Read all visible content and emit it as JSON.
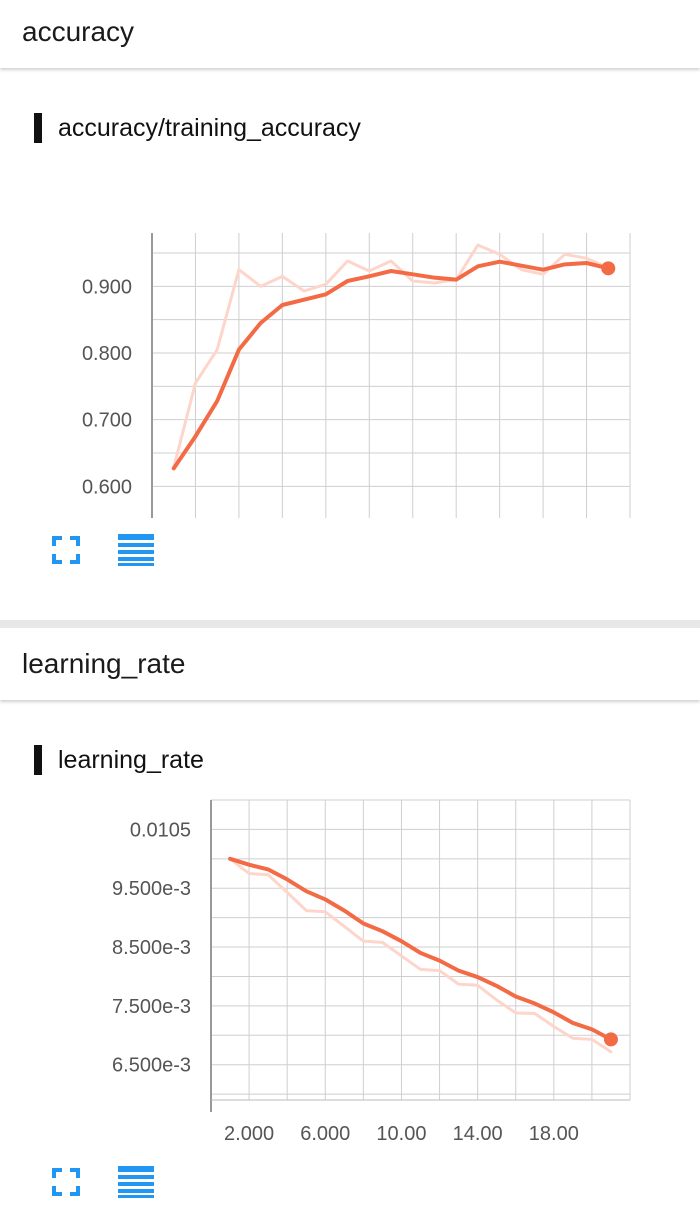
{
  "sections": [
    {
      "header": "accuracy",
      "card_title": "accuracy/training_accuracy",
      "x_ticks": [
        "2.000",
        "6.000",
        "10.00",
        "14.00",
        "18.00"
      ],
      "y_ticks": [
        "0.600",
        "0.700",
        "0.800",
        "0.900"
      ]
    },
    {
      "header": "learning_rate",
      "card_title": "learning_rate",
      "x_ticks": [
        "2.000",
        "6.000",
        "10.00",
        "14.00",
        "18.00"
      ],
      "y_ticks": [
        "0.0105",
        "9.500e-3",
        "8.500e-3",
        "7.500e-3",
        "6.500e-3"
      ]
    }
  ],
  "icons": {
    "expand": "fullscreen-icon",
    "data_table": "list-icon"
  },
  "colors": {
    "smoothed_line": "#f36b45",
    "raw_line": "#fdd5cb",
    "icon_blue": "#2196f3",
    "grid": "#cfcfcf"
  },
  "chart_data": [
    {
      "type": "line",
      "title": "accuracy/training_accuracy",
      "xlabel": "",
      "ylabel": "",
      "xlim": [
        0,
        22
      ],
      "ylim": [
        0.53,
        0.98
      ],
      "x_ticks": [
        2,
        6,
        10,
        14,
        18
      ],
      "y_ticks": [
        0.6,
        0.7,
        0.8,
        0.9
      ],
      "grid": true,
      "series": [
        {
          "role": "raw",
          "x": [
            1,
            2,
            3,
            4,
            5,
            6,
            7,
            8,
            9,
            10,
            11,
            12,
            13,
            14,
            15,
            16,
            17,
            18,
            19,
            20,
            21
          ],
          "y": [
            0.628,
            0.755,
            0.805,
            0.925,
            0.9,
            0.915,
            0.893,
            0.903,
            0.938,
            0.923,
            0.938,
            0.908,
            0.905,
            0.91,
            0.962,
            0.948,
            0.925,
            0.918,
            0.948,
            0.942,
            0.928
          ]
        },
        {
          "role": "smoothed",
          "x": [
            1,
            2,
            3,
            4,
            5,
            6,
            7,
            8,
            9,
            10,
            11,
            12,
            13,
            14,
            15,
            16,
            17,
            18,
            19,
            20,
            21
          ],
          "y": [
            0.627,
            0.675,
            0.728,
            0.805,
            0.845,
            0.872,
            0.88,
            0.888,
            0.908,
            0.915,
            0.923,
            0.918,
            0.913,
            0.91,
            0.93,
            0.937,
            0.931,
            0.925,
            0.933,
            0.935,
            0.927
          ]
        }
      ]
    },
    {
      "type": "line",
      "title": "learning_rate",
      "xlabel": "",
      "ylabel": "",
      "xlim": [
        0,
        22
      ],
      "ylim": [
        0.0059,
        0.011
      ],
      "x_ticks": [
        2,
        6,
        10,
        14,
        18
      ],
      "y_ticks": [
        0.0105,
        0.0095,
        0.0085,
        0.0075,
        0.0065
      ],
      "grid": true,
      "series": [
        {
          "role": "raw",
          "x": [
            1,
            2,
            3,
            4,
            5,
            6,
            7,
            8,
            9,
            10,
            11,
            12,
            13,
            14,
            15,
            16,
            17,
            18,
            19,
            20,
            21
          ],
          "y": [
            0.01,
            0.00975,
            0.00973,
            0.00943,
            0.00912,
            0.0091,
            0.00885,
            0.0086,
            0.00858,
            0.00835,
            0.00812,
            0.0081,
            0.00787,
            0.00785,
            0.0076,
            0.00738,
            0.00737,
            0.00715,
            0.00695,
            0.00693,
            0.00672
          ]
        },
        {
          "role": "smoothed",
          "x": [
            1,
            2,
            3,
            4,
            5,
            6,
            7,
            8,
            9,
            10,
            11,
            12,
            13,
            14,
            15,
            16,
            17,
            18,
            19,
            20,
            21
          ],
          "y": [
            0.01,
            0.0099,
            0.00982,
            0.00965,
            0.00945,
            0.00931,
            0.00912,
            0.0089,
            0.00877,
            0.0086,
            0.0084,
            0.00827,
            0.0081,
            0.00799,
            0.00784,
            0.00766,
            0.00754,
            0.00739,
            0.00721,
            0.0071,
            0.00693
          ]
        }
      ]
    }
  ]
}
